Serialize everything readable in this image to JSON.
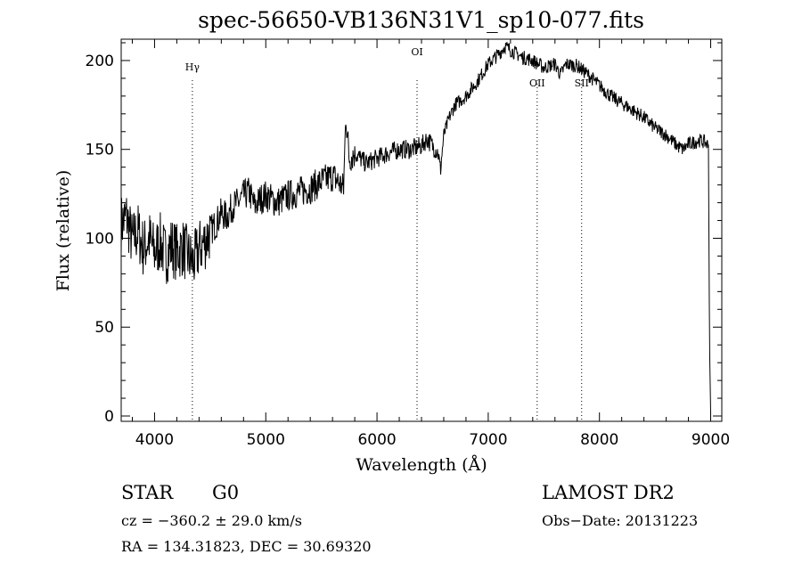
{
  "chart_data": {
    "type": "line",
    "title": "spec-56650-VB136N31V1_sp10-077.fits",
    "xlabel": "Wavelength (Å)",
    "ylabel": "Flux (relative)",
    "xlim": [
      3700,
      9100
    ],
    "ylim": [
      -3,
      212
    ],
    "xticks": [
      4000,
      5000,
      6000,
      7000,
      8000,
      9000
    ],
    "yticks": [
      0,
      50,
      100,
      150,
      200
    ],
    "grid": false,
    "spectral_lines": [
      {
        "label": "Hγ",
        "x": 4340
      },
      {
        "label": "OI",
        "x": 6360
      },
      {
        "label": "OII",
        "x": 7440
      },
      {
        "label": "SII",
        "x": 7840
      }
    ],
    "series": [
      {
        "x": [
          3700,
          3750,
          3800,
          3850,
          3900,
          3950,
          4000,
          4050,
          4100,
          4150,
          4200,
          4250,
          4300,
          4350,
          4400,
          4450,
          4500,
          4550,
          4600,
          4650,
          4700,
          4750,
          4800,
          4850,
          4900,
          4950,
          5000,
          5100,
          5200,
          5300,
          5400,
          5500,
          5600,
          5650,
          5700,
          5720,
          5750,
          5800,
          5900,
          6000,
          6100,
          6200,
          6300,
          6400,
          6450,
          6500,
          6550,
          6570,
          6600,
          6650,
          6700,
          6800,
          6900,
          7000,
          7100,
          7150,
          7200,
          7300,
          7400,
          7500,
          7600,
          7650,
          7700,
          7800,
          7900,
          8000,
          8100,
          8200,
          8300,
          8400,
          8500,
          8600,
          8700,
          8750,
          8800,
          8900,
          8950,
          8980,
          8990,
          9000
        ],
        "values": [
          108,
          112,
          98,
          104,
          94,
          100,
          92,
          98,
          90,
          96,
          92,
          95,
          90,
          86,
          94,
          98,
          104,
          108,
          114,
          112,
          118,
          120,
          124,
          126,
          118,
          122,
          124,
          120,
          124,
          126,
          128,
          132,
          135,
          132,
          128,
          170,
          145,
          148,
          142,
          145,
          148,
          150,
          150,
          152,
          156,
          152,
          148,
          138,
          158,
          168,
          175,
          180,
          188,
          198,
          204,
          208,
          206,
          202,
          200,
          196,
          198,
          192,
          198,
          197,
          192,
          186,
          180,
          176,
          172,
          168,
          162,
          158,
          152,
          150,
          153,
          155,
          154,
          152,
          40,
          2
        ]
      }
    ]
  },
  "footer": {
    "object_class": "STAR",
    "subclass": "G0",
    "survey": "LAMOST DR2",
    "cz": "cz = −360.2 ± 29.0 km/s",
    "obs_date": "Obs−Date: 20131223",
    "coords": "RA = 134.31823, DEC =  30.69320"
  },
  "colors": {
    "background": "#ffffff",
    "ink": "#000000"
  }
}
